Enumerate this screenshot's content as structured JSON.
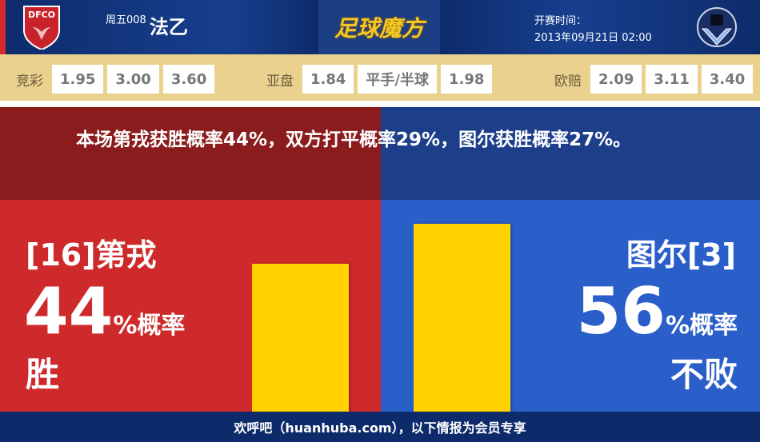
{
  "header": {
    "home_logo_text": "DFCO",
    "match_no": "周五008",
    "league": "法乙",
    "brand": "足球魔方",
    "time_label": "开赛时间：",
    "kickoff": "2013年09月21日 02:00"
  },
  "odds": [
    {
      "label": "竞彩",
      "values": [
        "1.95",
        "3.00",
        "3.60"
      ]
    },
    {
      "label": "亚盘",
      "values": [
        "1.84",
        "平手/半球",
        "1.98"
      ]
    },
    {
      "label": "欧赔",
      "values": [
        "2.09",
        "3.11",
        "3.40"
      ]
    }
  ],
  "summary": "本场第戎获胜概率44%，双方打平概率29%，图尔获胜概率27%。",
  "home": {
    "team": "[16]第戎",
    "pct": "44",
    "unit": "%概率",
    "result": "胜",
    "value": 44,
    "color": "#cf2a2b"
  },
  "away": {
    "team": "图尔[3]",
    "pct": "56",
    "unit": "%概率",
    "result": "不败",
    "value": 56,
    "color": "#2a5fc9"
  },
  "bar_color": "#ffd200",
  "footer": "欢呼吧（huanhuba.com），以下情报为会员专享"
}
